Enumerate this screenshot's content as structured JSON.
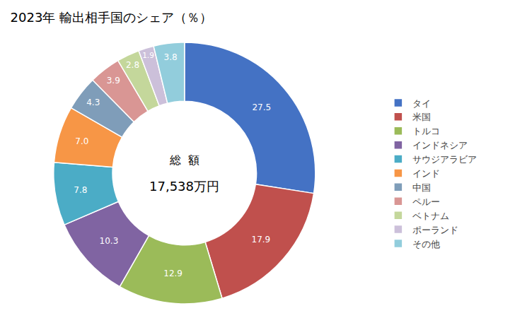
{
  "chart_data": {
    "type": "donut",
    "title": "2023年 輸出相手国のシェア（％）",
    "categories": [
      "タイ",
      "米国",
      "トルコ",
      "インドネシア",
      "サウジアラビア",
      "インド",
      "中国",
      "ペルー",
      "ベトナム",
      "ポーランド",
      "その他"
    ],
    "values": [
      27.5,
      17.9,
      12.9,
      10.3,
      7.8,
      7.0,
      4.3,
      3.9,
      2.8,
      1.9,
      3.8
    ],
    "value_labels": [
      "27.5",
      "17.9",
      "12.9",
      "10.3",
      "7.8",
      "7.0",
      "4.3",
      "3.9",
      "2.8",
      "1.9",
      "3.8"
    ],
    "colors": [
      "#4472C4",
      "#C0504D",
      "#9BBB59",
      "#8064A2",
      "#4BACC6",
      "#F79646",
      "#7F9DB9",
      "#D99694",
      "#C4D79B",
      "#CCC0DA",
      "#92CDDC"
    ],
    "data_labels": true,
    "legend": "right",
    "annotations": [
      "総  額",
      "17,538万円"
    ]
  }
}
